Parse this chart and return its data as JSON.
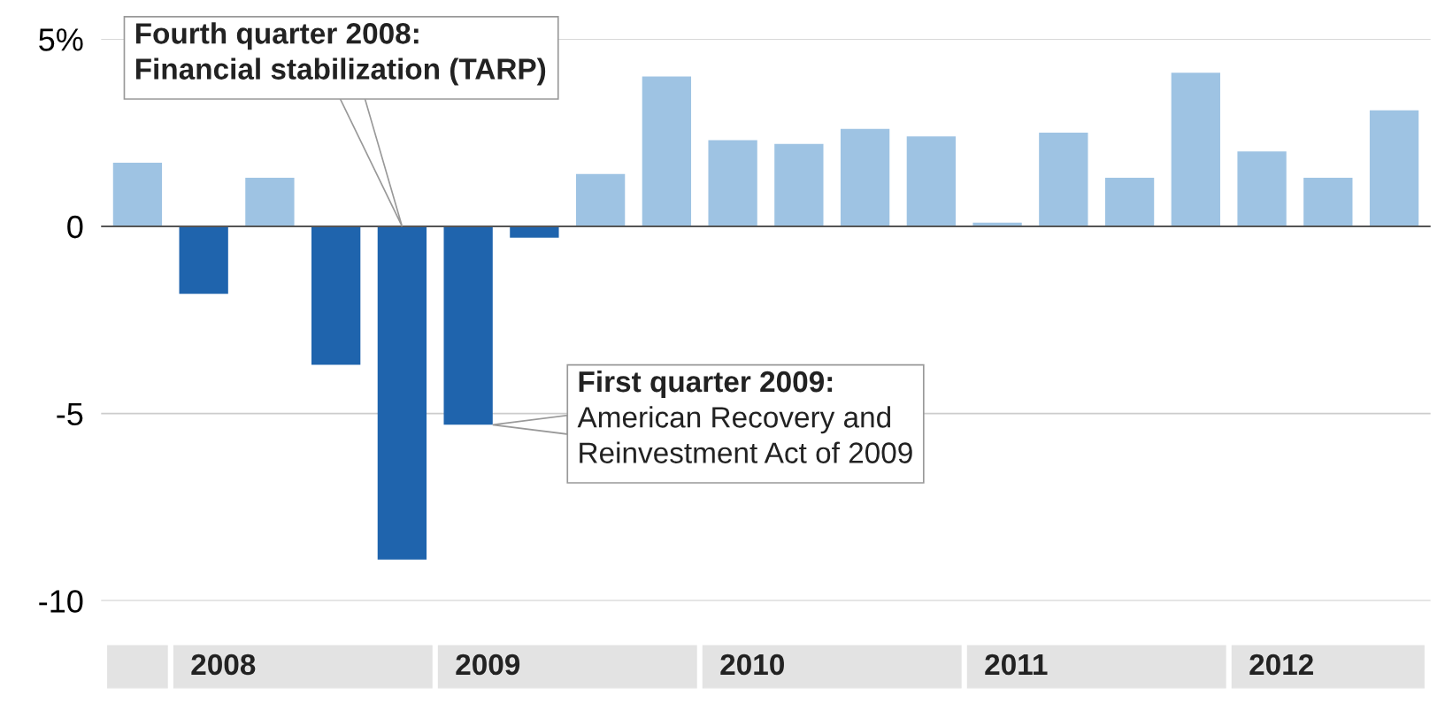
{
  "chart_data": {
    "type": "bar",
    "categories": [
      null,
      "2008",
      null,
      null,
      null,
      "2009",
      null,
      null,
      null,
      "2010",
      null,
      null,
      null,
      "2011",
      null,
      null,
      null,
      "2012",
      null,
      null
    ],
    "values": [
      1.7,
      -1.8,
      1.3,
      -3.7,
      -8.9,
      -5.3,
      -0.3,
      1.4,
      4.0,
      2.3,
      2.2,
      2.6,
      2.4,
      0.1,
      2.5,
      1.3,
      4.1,
      2.0,
      1.3,
      3.1
    ],
    "colors": [
      "#9ec3e3",
      "#1f64ad",
      "#9ec3e3",
      "#1f64ad",
      "#1f64ad",
      "#1f64ad",
      "#1f64ad",
      "#9ec3e3",
      "#9ec3e3",
      "#9ec3e3",
      "#9ec3e3",
      "#9ec3e3",
      "#9ec3e3",
      "#9ec3e3",
      "#9ec3e3",
      "#9ec3e3",
      "#9ec3e3",
      "#9ec3e3",
      "#9ec3e3",
      "#9ec3e3"
    ],
    "ylim": [
      -10,
      5
    ],
    "yticks": [
      -10,
      -5,
      0,
      {
        "value": 5,
        "label": "5%"
      }
    ],
    "grid": "y",
    "annotations": [
      "Fourth quarter 2008:\nFinancial stabilization (TARP)",
      "First quarter 2009:\nAmerican Recovery and\nReinvestment Act of 2009"
    ]
  }
}
